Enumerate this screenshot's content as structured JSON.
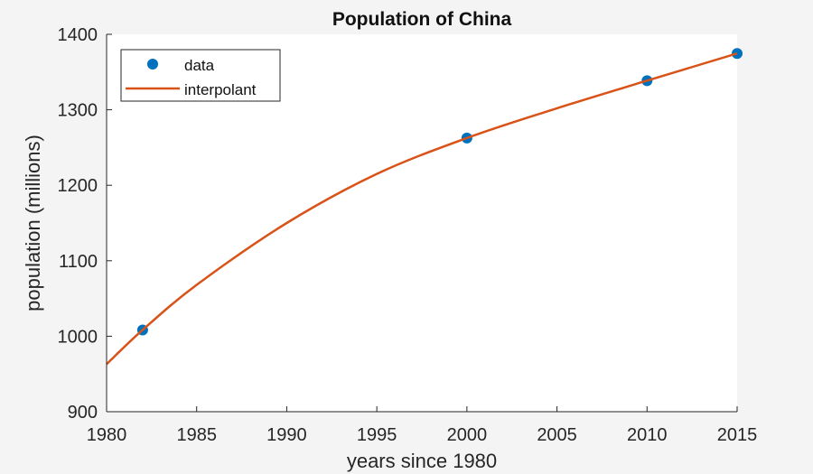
{
  "chart_data": {
    "type": "line",
    "title": "Population of China",
    "xlabel": "years since 1980",
    "ylabel": "population (millions)",
    "xlim": [
      1980,
      2015
    ],
    "ylim": [
      900,
      1400
    ],
    "xticks": [
      1980,
      1985,
      1990,
      1995,
      2000,
      2005,
      2010,
      2015
    ],
    "yticks": [
      900,
      1000,
      1100,
      1200,
      1300,
      1400
    ],
    "grid": false,
    "legend_position": "top-left",
    "series": [
      {
        "name": "data",
        "style": "markers",
        "color": "#0072BD",
        "x": [
          1982,
          2000,
          2010,
          2015
        ],
        "y": [
          1008.3,
          1262.6,
          1338.6,
          1374.6
        ]
      },
      {
        "name": "interpolant",
        "style": "line",
        "color": "#D95319",
        "x": [
          1980,
          1982,
          1985,
          1990,
          1995,
          2000,
          2005,
          2010,
          2015
        ],
        "y": [
          963,
          1008.3,
          1068,
          1150,
          1215,
          1262.6,
          1302,
          1338.6,
          1374.6
        ]
      }
    ]
  }
}
